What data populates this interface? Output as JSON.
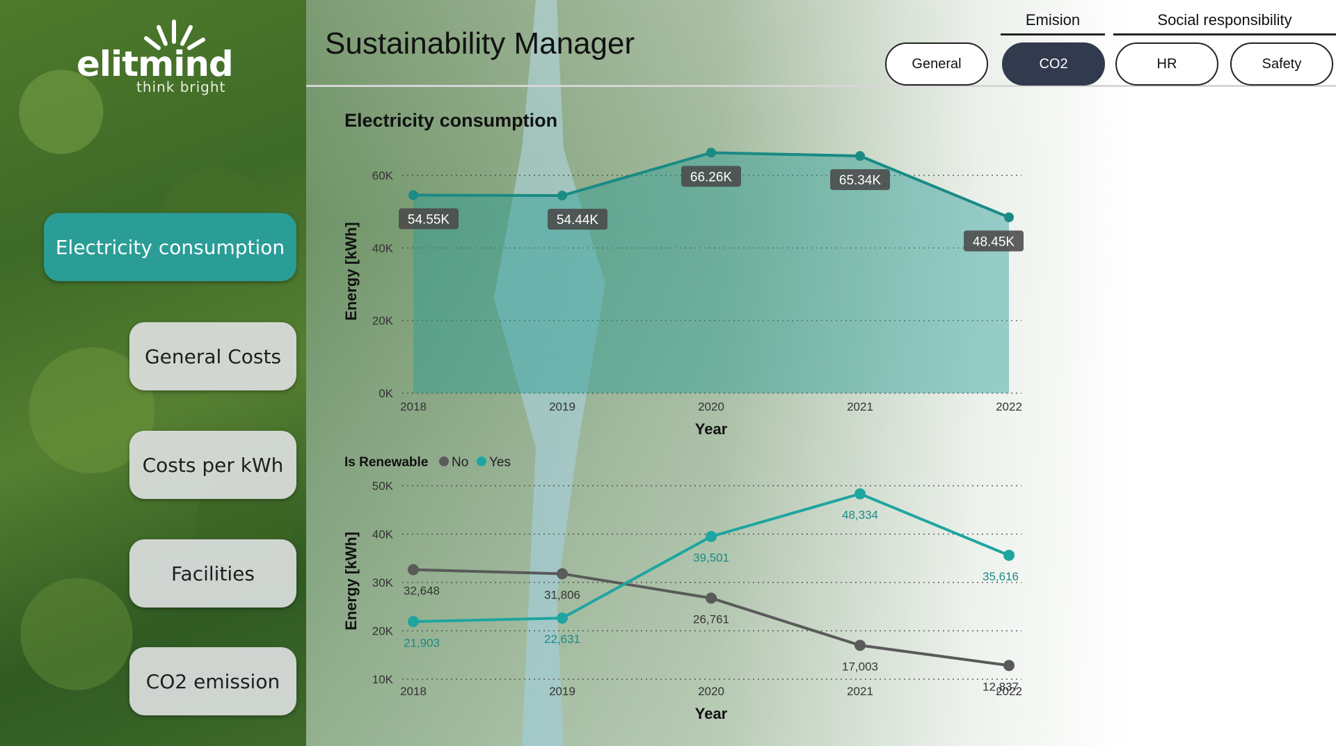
{
  "brand": {
    "name": "elitmind",
    "tagline": "think bright"
  },
  "header": {
    "title": "Sustainability Manager",
    "groups": [
      {
        "label": "Emision"
      },
      {
        "label": "Social responsibility"
      }
    ],
    "tabs": [
      {
        "label": "General",
        "active": false
      },
      {
        "label": "CO2",
        "active": true
      },
      {
        "label": "HR",
        "active": false
      },
      {
        "label": "Safety",
        "active": false
      }
    ]
  },
  "sidebar": {
    "items": [
      {
        "label": "Electricity consumption",
        "active": true
      },
      {
        "label": "General Costs",
        "active": false
      },
      {
        "label": "Costs per kWh",
        "active": false
      },
      {
        "label": "Facilities",
        "active": false
      },
      {
        "label": "CO2 emission",
        "active": false
      }
    ]
  },
  "colors": {
    "teal": "#1a8a85",
    "area": "#2a9d96",
    "yes": "#1fa5a0",
    "no": "#5a5a5a"
  },
  "chart_data": [
    {
      "type": "area",
      "title": "Electricity consumption",
      "xlabel": "Year",
      "ylabel": "Energy [kWh]",
      "categories": [
        "2018",
        "2019",
        "2020",
        "2021",
        "2022"
      ],
      "values": [
        54550,
        54440,
        66260,
        65340,
        48450
      ],
      "data_labels": [
        "54.55K",
        "54.44K",
        "66.26K",
        "65.34K",
        "48.45K"
      ],
      "yticks": [
        "0K",
        "20K",
        "40K",
        "60K"
      ],
      "ylim": [
        0,
        65000
      ],
      "grid": true
    },
    {
      "type": "line",
      "xlabel": "Year",
      "ylabel": "Energy [kWh]",
      "legend_title": "Is Renewable",
      "legend_position": "top-left",
      "categories": [
        "2018",
        "2019",
        "2020",
        "2021",
        "2022"
      ],
      "yticks": [
        "10K",
        "20K",
        "30K",
        "40K",
        "50K"
      ],
      "ylim": [
        10000,
        50000
      ],
      "grid": true,
      "series": [
        {
          "name": "No",
          "values": [
            32648,
            31806,
            26761,
            17003,
            12837
          ],
          "labels": [
            "32,648",
            "31,806",
            "26,761",
            "17,003",
            "12,837"
          ]
        },
        {
          "name": "Yes",
          "values": [
            21903,
            22631,
            39501,
            48334,
            35616
          ],
          "labels": [
            "21,903",
            "22,631",
            "39,501",
            "48,334",
            "35,616"
          ]
        }
      ]
    }
  ]
}
